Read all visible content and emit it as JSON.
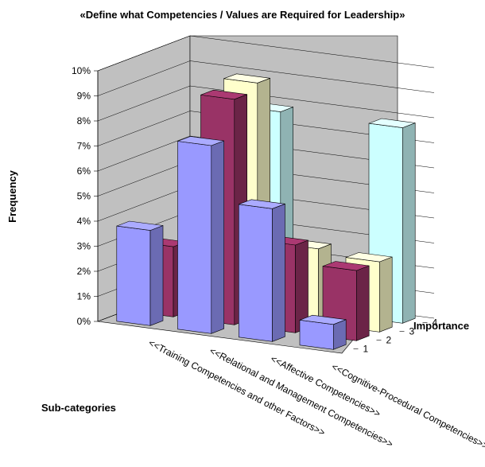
{
  "chart_data": {
    "type": "bar",
    "title": "«Define what Competencies / Values are Required for Leadership»",
    "ylabel": "Frequency",
    "xlabel": "Sub-categories",
    "zlabel": "Importance",
    "ylim": [
      0,
      10
    ],
    "yticks": [
      "0%",
      "1%",
      "2%",
      "3%",
      "4%",
      "5%",
      "6%",
      "7%",
      "8%",
      "9%",
      "10%"
    ],
    "categories": [
      "<<Training Competencies and other Factors>>",
      "<<Relational and Management Competencies>>",
      "<<Affective Competencies>>",
      "<<Cognitive-Procedural Competencies>>"
    ],
    "depth_labels": [
      "1",
      "2",
      "3",
      "4"
    ],
    "series": [
      {
        "depth": "1",
        "color": "#9999ff",
        "values": [
          3.8,
          7.5,
          5.3,
          1.0
        ]
      },
      {
        "depth": "2",
        "color": "#993366",
        "values": [
          2.8,
          9.0,
          3.5,
          2.8
        ]
      },
      {
        "depth": "3",
        "color": "#ffffcc",
        "values": [
          1.0,
          9.3,
          3.0,
          2.8
        ]
      },
      {
        "depth": "4",
        "color": "#ccffff",
        "values": [
          0.0,
          7.8,
          0.0,
          7.8
        ]
      }
    ],
    "grid": true
  }
}
